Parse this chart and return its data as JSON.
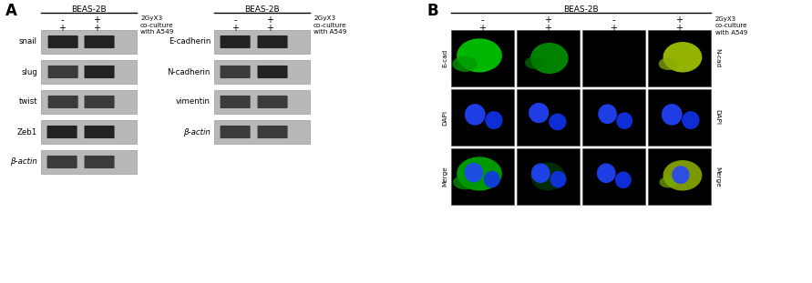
{
  "panel_A_label": "A",
  "panel_B_label": "B",
  "blot1_title": "BEAS-2B",
  "blot2_title": "BEAS-2B",
  "blot1_labels": [
    "snail",
    "slug",
    "twist",
    "Zeb1",
    "β-actin"
  ],
  "blot2_labels": [
    "E-cadherin",
    "N-cadherin",
    "vimentin",
    "β-actin"
  ],
  "col_minus": "-",
  "col_plus": "+",
  "col_2gyx3": "2GyX3\nco-culture\nwith A549",
  "row_plus": "+",
  "B_title": "BEAS-2B",
  "B_col_labels_row1": [
    "-",
    "+",
    "-",
    "+"
  ],
  "B_col_labels_row2": [
    "+",
    "+",
    "+",
    "+"
  ],
  "B_col_right": "2GyX3\nco-culture\nwith A549",
  "B_row_labels_left": [
    "E-cad",
    "DAPI",
    "Merge"
  ],
  "B_row_labels_right": [
    "N-cad",
    "DAPI",
    "Merge"
  ],
  "bg_color": "#ffffff"
}
